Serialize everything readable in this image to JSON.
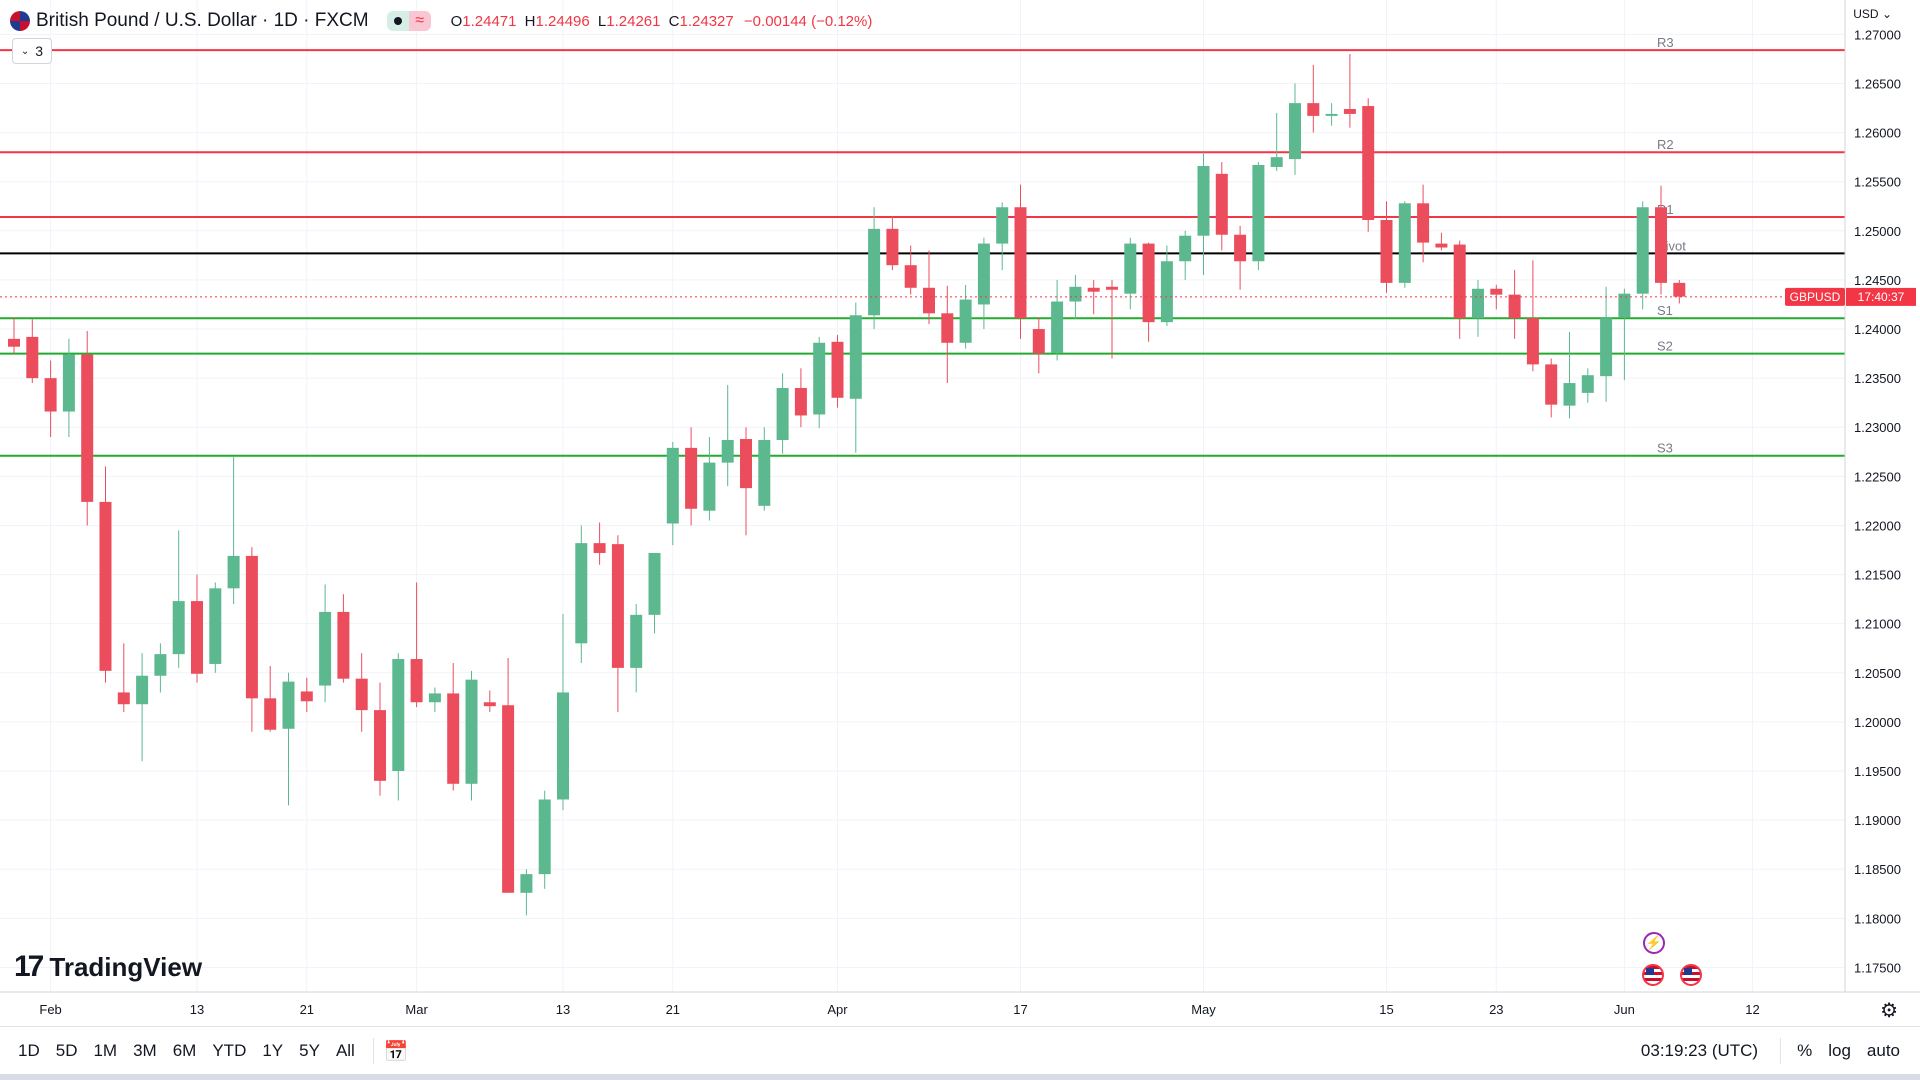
{
  "header": {
    "symbol_title": "British Pound / U.S. Dollar · 1D · FXCM",
    "open_label": "O",
    "open": "1.24471",
    "high_label": "H",
    "high": "1.24496",
    "low_label": "L",
    "low": "1.24261",
    "close_label": "C",
    "close": "1.24327",
    "change": "−0.00144 (−0.12%)",
    "indicator_count": "3",
    "currency": "USD"
  },
  "colors": {
    "up": "#5cb88f",
    "down": "#ec4d5c",
    "resistance": "#f23645",
    "support": "#22ab2f",
    "pivot": "#000000",
    "grid": "#f0f3fa",
    "price_tag": "#f23645"
  },
  "icons": {
    "flag": "gb-us-flag-icon",
    "dot": "status-dot-icon",
    "wave": "data-wave-icon",
    "calendar": "calendar-range-icon",
    "gear": "settings-gear-icon",
    "bolt": "bolt-event-icon",
    "us_event": "us-flag-event-icon"
  },
  "logo": {
    "mark": "17",
    "text": "TradingView"
  },
  "price_tag": {
    "symbol": "GBPUSD",
    "countdown": "17:40:37",
    "value": 1.24327
  },
  "bottom_bar": {
    "ranges": [
      "1D",
      "5D",
      "1M",
      "3M",
      "6M",
      "YTD",
      "1Y",
      "5Y",
      "All"
    ],
    "time": "03:19:23 (UTC)",
    "percent": "%",
    "log": "log",
    "auto": "auto"
  },
  "chart_data": {
    "type": "candlestick",
    "symbol": "GBPUSD",
    "ylim": [
      1.1725,
      1.2735
    ],
    "y_ticks": [
      "1.27000",
      "1.26500",
      "1.26000",
      "1.25500",
      "1.25000",
      "1.24500",
      "1.24000",
      "1.23500",
      "1.23000",
      "1.22500",
      "1.22000",
      "1.21500",
      "1.21000",
      "1.20500",
      "1.20000",
      "1.19500",
      "1.19000",
      "1.18500",
      "1.18000",
      "1.17500"
    ],
    "x_labels": [
      {
        "i": 2,
        "label": "Feb"
      },
      {
        "i": 10,
        "label": "13"
      },
      {
        "i": 16,
        "label": "21"
      },
      {
        "i": 22,
        "label": "Mar"
      },
      {
        "i": 30,
        "label": "13"
      },
      {
        "i": 36,
        "label": "21"
      },
      {
        "i": 45,
        "label": "Apr"
      },
      {
        "i": 55,
        "label": "17"
      },
      {
        "i": 65,
        "label": "May"
      },
      {
        "i": 75,
        "label": "15"
      },
      {
        "i": 81,
        "label": "23"
      },
      {
        "i": 88,
        "label": "Jun"
      },
      {
        "i": 95,
        "label": "12"
      }
    ],
    "levels": [
      {
        "name": "R3",
        "value": 1.2684,
        "kind": "resistance"
      },
      {
        "name": "R2",
        "value": 1.258,
        "kind": "resistance"
      },
      {
        "name": "R1",
        "value": 1.2514,
        "kind": "resistance"
      },
      {
        "name": "Pivot",
        "value": 1.2477,
        "kind": "pivot"
      },
      {
        "name": "S1",
        "value": 1.2411,
        "kind": "support"
      },
      {
        "name": "S2",
        "value": 1.2375,
        "kind": "support"
      },
      {
        "name": "S3",
        "value": 1.2271,
        "kind": "support"
      }
    ],
    "candles": [
      {
        "o": 1.239,
        "h": 1.2412,
        "l": 1.2375,
        "c": 1.2382
      },
      {
        "o": 1.2392,
        "h": 1.241,
        "l": 1.2345,
        "c": 1.235
      },
      {
        "o": 1.235,
        "h": 1.2368,
        "l": 1.229,
        "c": 1.2316
      },
      {
        "o": 1.2316,
        "h": 1.239,
        "l": 1.229,
        "c": 1.2374
      },
      {
        "o": 1.2374,
        "h": 1.2398,
        "l": 1.22,
        "c": 1.2224
      },
      {
        "o": 1.2224,
        "h": 1.226,
        "l": 1.204,
        "c": 1.2052
      },
      {
        "o": 1.203,
        "h": 1.208,
        "l": 1.201,
        "c": 1.2018
      },
      {
        "o": 1.2018,
        "h": 1.207,
        "l": 1.196,
        "c": 1.2047
      },
      {
        "o": 1.2047,
        "h": 1.208,
        "l": 1.203,
        "c": 1.2069
      },
      {
        "o": 1.2069,
        "h": 1.2195,
        "l": 1.2055,
        "c": 1.2123
      },
      {
        "o": 1.2123,
        "h": 1.215,
        "l": 1.204,
        "c": 1.2049
      },
      {
        "o": 1.2059,
        "h": 1.2142,
        "l": 1.205,
        "c": 1.2136
      },
      {
        "o": 1.2136,
        "h": 1.227,
        "l": 1.212,
        "c": 1.2169
      },
      {
        "o": 1.2169,
        "h": 1.2178,
        "l": 1.199,
        "c": 1.2024
      },
      {
        "o": 1.2024,
        "h": 1.2057,
        "l": 1.199,
        "c": 1.1992
      },
      {
        "o": 1.1993,
        "h": 1.205,
        "l": 1.1915,
        "c": 1.2041
      },
      {
        "o": 1.2031,
        "h": 1.2045,
        "l": 1.201,
        "c": 1.2021
      },
      {
        "o": 1.2037,
        "h": 1.214,
        "l": 1.202,
        "c": 1.2112
      },
      {
        "o": 1.2112,
        "h": 1.213,
        "l": 1.204,
        "c": 1.2044
      },
      {
        "o": 1.2044,
        "h": 1.207,
        "l": 1.199,
        "c": 1.2012
      },
      {
        "o": 1.2012,
        "h": 1.204,
        "l": 1.1925,
        "c": 1.194
      },
      {
        "o": 1.195,
        "h": 1.207,
        "l": 1.192,
        "c": 1.2064
      },
      {
        "o": 1.2064,
        "h": 1.2142,
        "l": 1.2015,
        "c": 1.202
      },
      {
        "o": 1.202,
        "h": 1.2035,
        "l": 1.201,
        "c": 1.2029
      },
      {
        "o": 1.2029,
        "h": 1.206,
        "l": 1.193,
        "c": 1.1937
      },
      {
        "o": 1.1937,
        "h": 1.2052,
        "l": 1.192,
        "c": 1.2043
      },
      {
        "o": 1.202,
        "h": 1.2032,
        "l": 1.201,
        "c": 1.2016
      },
      {
        "o": 1.2017,
        "h": 1.2065,
        "l": 1.183,
        "c": 1.1826
      },
      {
        "o": 1.1826,
        "h": 1.185,
        "l": 1.1803,
        "c": 1.1845
      },
      {
        "o": 1.1845,
        "h": 1.193,
        "l": 1.183,
        "c": 1.1921
      },
      {
        "o": 1.1921,
        "h": 1.211,
        "l": 1.191,
        "c": 1.203
      },
      {
        "o": 1.208,
        "h": 1.22,
        "l": 1.206,
        "c": 1.2182
      },
      {
        "o": 1.2182,
        "h": 1.2203,
        "l": 1.216,
        "c": 1.2172
      },
      {
        "o": 1.2181,
        "h": 1.219,
        "l": 1.201,
        "c": 1.2055
      },
      {
        "o": 1.2055,
        "h": 1.212,
        "l": 1.203,
        "c": 1.2109
      },
      {
        "o": 1.2109,
        "h": 1.217,
        "l": 1.209,
        "c": 1.2172
      },
      {
        "o": 1.2202,
        "h": 1.2285,
        "l": 1.218,
        "c": 1.2279
      },
      {
        "o": 1.2279,
        "h": 1.23,
        "l": 1.22,
        "c": 1.2217
      },
      {
        "o": 1.2215,
        "h": 1.229,
        "l": 1.2205,
        "c": 1.2264
      },
      {
        "o": 1.2264,
        "h": 1.2343,
        "l": 1.224,
        "c": 1.2287
      },
      {
        "o": 1.2288,
        "h": 1.23,
        "l": 1.219,
        "c": 1.2238
      },
      {
        "o": 1.222,
        "h": 1.23,
        "l": 1.2215,
        "c": 1.2287
      },
      {
        "o": 1.2287,
        "h": 1.2355,
        "l": 1.2273,
        "c": 1.234
      },
      {
        "o": 1.234,
        "h": 1.236,
        "l": 1.23,
        "c": 1.2312
      },
      {
        "o": 1.2313,
        "h": 1.2392,
        "l": 1.2299,
        "c": 1.2386
      },
      {
        "o": 1.2387,
        "h": 1.2394,
        "l": 1.232,
        "c": 1.233
      },
      {
        "o": 1.2329,
        "h": 1.2427,
        "l": 1.2274,
        "c": 1.2414
      },
      {
        "o": 1.2414,
        "h": 1.2524,
        "l": 1.24,
        "c": 1.2502
      },
      {
        "o": 1.2502,
        "h": 1.2515,
        "l": 1.246,
        "c": 1.2465
      },
      {
        "o": 1.2465,
        "h": 1.2485,
        "l": 1.2435,
        "c": 1.2442
      },
      {
        "o": 1.2442,
        "h": 1.248,
        "l": 1.2405,
        "c": 1.2416
      },
      {
        "o": 1.2416,
        "h": 1.2444,
        "l": 1.2345,
        "c": 1.2386
      },
      {
        "o": 1.2386,
        "h": 1.2445,
        "l": 1.238,
        "c": 1.243
      },
      {
        "o": 1.2425,
        "h": 1.2493,
        "l": 1.24,
        "c": 1.2487
      },
      {
        "o": 1.2487,
        "h": 1.2529,
        "l": 1.246,
        "c": 1.2524
      },
      {
        "o": 1.2524,
        "h": 1.2547,
        "l": 1.239,
        "c": 1.2411
      },
      {
        "o": 1.24,
        "h": 1.2412,
        "l": 1.2355,
        "c": 1.2375
      },
      {
        "o": 1.2376,
        "h": 1.245,
        "l": 1.2368,
        "c": 1.2428
      },
      {
        "o": 1.2428,
        "h": 1.2455,
        "l": 1.241,
        "c": 1.2443
      },
      {
        "o": 1.2442,
        "h": 1.245,
        "l": 1.2415,
        "c": 1.2438
      },
      {
        "o": 1.2443,
        "h": 1.245,
        "l": 1.237,
        "c": 1.244
      },
      {
        "o": 1.2436,
        "h": 1.2493,
        "l": 1.242,
        "c": 1.2487
      },
      {
        "o": 1.2487,
        "h": 1.2488,
        "l": 1.2387,
        "c": 1.2407
      },
      {
        "o": 1.2407,
        "h": 1.2485,
        "l": 1.2403,
        "c": 1.2469
      },
      {
        "o": 1.2469,
        "h": 1.25,
        "l": 1.245,
        "c": 1.2495
      },
      {
        "o": 1.2495,
        "h": 1.258,
        "l": 1.2455,
        "c": 1.2566
      },
      {
        "o": 1.2558,
        "h": 1.257,
        "l": 1.248,
        "c": 1.2496
      },
      {
        "o": 1.2496,
        "h": 1.2505,
        "l": 1.244,
        "c": 1.2469
      },
      {
        "o": 1.2469,
        "h": 1.257,
        "l": 1.246,
        "c": 1.2567
      },
      {
        "o": 1.2565,
        "h": 1.262,
        "l": 1.2561,
        "c": 1.2575
      },
      {
        "o": 1.2573,
        "h": 1.265,
        "l": 1.2557,
        "c": 1.263
      },
      {
        "o": 1.263,
        "h": 1.2669,
        "l": 1.26,
        "c": 1.2617
      },
      {
        "o": 1.2617,
        "h": 1.263,
        "l": 1.2607,
        "c": 1.2619
      },
      {
        "o": 1.2624,
        "h": 1.268,
        "l": 1.2605,
        "c": 1.2619
      },
      {
        "o": 1.2627,
        "h": 1.2635,
        "l": 1.2499,
        "c": 1.2511
      },
      {
        "o": 1.2511,
        "h": 1.253,
        "l": 1.2437,
        "c": 1.2447
      },
      {
        "o": 1.2447,
        "h": 1.253,
        "l": 1.2442,
        "c": 1.2528
      },
      {
        "o": 1.2528,
        "h": 1.2547,
        "l": 1.2468,
        "c": 1.2488
      },
      {
        "o": 1.2487,
        "h": 1.2498,
        "l": 1.248,
        "c": 1.2483
      },
      {
        "o": 1.2486,
        "h": 1.249,
        "l": 1.239,
        "c": 1.2411
      },
      {
        "o": 1.2411,
        "h": 1.245,
        "l": 1.2392,
        "c": 1.2441
      },
      {
        "o": 1.2441,
        "h": 1.2445,
        "l": 1.242,
        "c": 1.2435
      },
      {
        "o": 1.2435,
        "h": 1.246,
        "l": 1.239,
        "c": 1.2411
      },
      {
        "o": 1.2411,
        "h": 1.247,
        "l": 1.2357,
        "c": 1.2364
      },
      {
        "o": 1.2364,
        "h": 1.237,
        "l": 1.231,
        "c": 1.2323
      },
      {
        "o": 1.2322,
        "h": 1.2397,
        "l": 1.2309,
        "c": 1.2345
      },
      {
        "o": 1.2335,
        "h": 1.236,
        "l": 1.2325,
        "c": 1.2353
      },
      {
        "o": 1.2352,
        "h": 1.2443,
        "l": 1.2326,
        "c": 1.2411
      },
      {
        "o": 1.2412,
        "h": 1.2441,
        "l": 1.2348,
        "c": 1.2436
      },
      {
        "o": 1.2436,
        "h": 1.253,
        "l": 1.242,
        "c": 1.2524
      },
      {
        "o": 1.2524,
        "h": 1.2546,
        "l": 1.2435,
        "c": 1.2447
      },
      {
        "o": 1.2447,
        "h": 1.245,
        "l": 1.2426,
        "c": 1.2433
      }
    ]
  }
}
